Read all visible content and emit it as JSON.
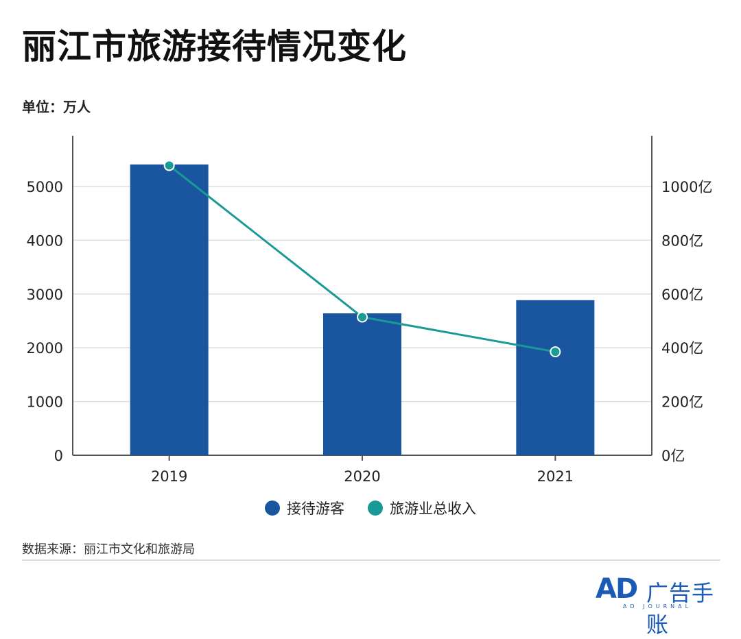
{
  "title": "丽江市旅游接待情况变化",
  "unit_label": "单位：万人",
  "source": "数据来源：丽江市文化和旅游局",
  "logo": {
    "mark": "AD",
    "name": "广告手账",
    "english": "AD JOURNAL"
  },
  "colors": {
    "bar": "#1a56a0",
    "line": "#1a9a96",
    "grid": "#dddddd",
    "axis": "#555555"
  },
  "chart_data": {
    "type": "bar",
    "categories": [
      "2019",
      "2020",
      "2021"
    ],
    "series": [
      {
        "name": "接待游客",
        "type": "bar",
        "axis": "left",
        "values": [
          5410,
          2640,
          2885
        ]
      },
      {
        "name": "旅游业总收入",
        "type": "line",
        "axis": "right",
        "values": [
          1078,
          514,
          385
        ]
      }
    ],
    "left_axis": {
      "ylim": [
        0,
        5000
      ],
      "ticks": [
        "0",
        "1000",
        "2000",
        "3000",
        "4000",
        "5000"
      ],
      "tick_values": [
        0,
        1000,
        2000,
        3000,
        4000,
        5000
      ]
    },
    "right_axis": {
      "ylim": [
        0,
        1000
      ],
      "ticks": [
        "0亿",
        "200亿",
        "400亿",
        "600亿",
        "800亿",
        "1000亿"
      ],
      "tick_values": [
        0,
        200,
        400,
        600,
        800,
        1000
      ]
    },
    "grid": true,
    "legend_position": "bottom-center"
  }
}
